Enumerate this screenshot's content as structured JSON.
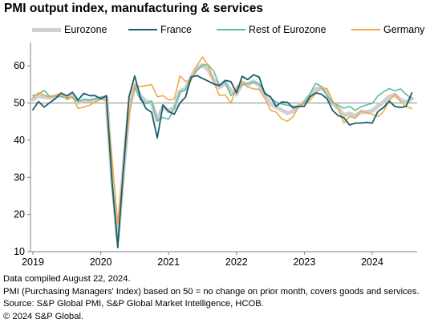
{
  "title": "PMI output index, manufacturing & services",
  "footnotes": [
    "Data compiled August 22, 2024.",
    "PMI (Purchasing Managers' Index) based on 50 = no change on prior month, covers goods and services.",
    "Source: S&P Global PMI, S&P Global Market Intelligence, HCOB.",
    "© 2024 S&P Global."
  ],
  "chart_data": {
    "type": "line",
    "title": "PMI output index, manufacturing & services",
    "xlabel": "",
    "ylabel": "",
    "x_start": "2019-01",
    "x_ticks": [
      "2019",
      "2020",
      "2021",
      "2022",
      "2023",
      "2024"
    ],
    "yticks": [
      10,
      20,
      30,
      40,
      50,
      60
    ],
    "ylim": [
      10,
      65
    ],
    "reference_line": 50,
    "grid": false,
    "legend_position": "top",
    "series": [
      {
        "name": "Eurozone",
        "color": "#d0d0d0",
        "values": [
          51.0,
          51.9,
          51.6,
          51.5,
          51.8,
          52.2,
          51.5,
          51.9,
          50.1,
          50.6,
          50.6,
          50.9,
          51.3,
          51.6,
          29.7,
          13.6,
          31.9,
          48.5,
          54.9,
          51.9,
          50.4,
          50.0,
          45.3,
          49.1,
          47.8,
          48.8,
          53.2,
          53.8,
          57.1,
          59.5,
          60.2,
          59.0,
          56.2,
          54.2,
          55.4,
          53.3,
          52.3,
          55.5,
          54.9,
          55.8,
          54.8,
          52.0,
          49.9,
          48.9,
          48.1,
          47.3,
          47.8,
          49.3,
          50.3,
          52.0,
          53.7,
          54.1,
          52.8,
          49.9,
          48.6,
          46.7,
          47.2,
          46.5,
          47.6,
          47.6,
          47.9,
          49.2,
          50.3,
          51.7,
          52.2,
          50.9,
          50.2,
          51.2
        ]
      },
      {
        "name": "France",
        "color": "#1c5c6c",
        "values": [
          48.2,
          50.4,
          48.9,
          50.1,
          51.2,
          52.7,
          51.9,
          52.9,
          50.8,
          52.6,
          52.0,
          52.0,
          51.1,
          52.0,
          28.9,
          11.1,
          32.1,
          51.7,
          57.3,
          51.6,
          48.5,
          47.5,
          40.6,
          49.5,
          47.7,
          47.0,
          50.0,
          51.6,
          57.0,
          57.4,
          56.6,
          55.9,
          55.1,
          54.7,
          56.1,
          55.8,
          52.7,
          57.2,
          56.3,
          57.6,
          57.0,
          52.5,
          51.7,
          49.1,
          50.3,
          50.2,
          48.7,
          49.1,
          49.1,
          51.7,
          52.7,
          52.4,
          51.2,
          48.0,
          46.6,
          46.0,
          44.1,
          44.6,
          44.6,
          44.8,
          44.6,
          47.7,
          48.8,
          50.5,
          49.1,
          48.8,
          49.1,
          52.7
        ]
      },
      {
        "name": "Rest of Eurozone",
        "color": "#5cbda6",
        "values": [
          52.0,
          52.4,
          53.4,
          51.7,
          51.9,
          51.7,
          51.4,
          51.6,
          50.4,
          51.0,
          50.8,
          51.1,
          51.6,
          51.5,
          28.2,
          12.5,
          31.3,
          46.9,
          54.4,
          50.9,
          49.8,
          50.6,
          45.2,
          46.1,
          45.6,
          48.6,
          53.0,
          53.5,
          57.0,
          58.7,
          60.2,
          60.3,
          58.5,
          54.8,
          55.8,
          52.0,
          53.3,
          54.9,
          55.3,
          55.7,
          55.2,
          52.9,
          51.5,
          50.3,
          49.7,
          49.4,
          49.2,
          49.0,
          50.2,
          52.5,
          55.3,
          54.5,
          52.0,
          50.0,
          49.4,
          48.6,
          49.1,
          48.0,
          49.0,
          49.5,
          49.9,
          51.9,
          53.0,
          53.9,
          53.3,
          53.8,
          52.3,
          51.2
        ]
      },
      {
        "name": "Germany",
        "color": "#f0a94a",
        "values": [
          51.5,
          52.8,
          52.1,
          51.6,
          52.1,
          52.6,
          50.9,
          51.7,
          48.5,
          48.9,
          49.4,
          50.2,
          51.0,
          50.7,
          35.0,
          17.4,
          32.3,
          47.0,
          54.8,
          54.4,
          54.7,
          55.0,
          51.7,
          52.0,
          50.8,
          51.1,
          57.3,
          55.8,
          56.2,
          60.1,
          62.4,
          60.0,
          55.5,
          52.0,
          52.2,
          49.9,
          54.3,
          55.6,
          54.3,
          53.8,
          53.7,
          51.3,
          48.1,
          47.6,
          45.7,
          45.1,
          46.3,
          49.0,
          49.9,
          50.7,
          52.6,
          54.2,
          53.9,
          50.6,
          48.5,
          44.6,
          46.4,
          45.9,
          47.8,
          47.4,
          47.0,
          46.3,
          47.7,
          50.6,
          52.4,
          50.4,
          49.1,
          48.5
        ]
      }
    ]
  }
}
